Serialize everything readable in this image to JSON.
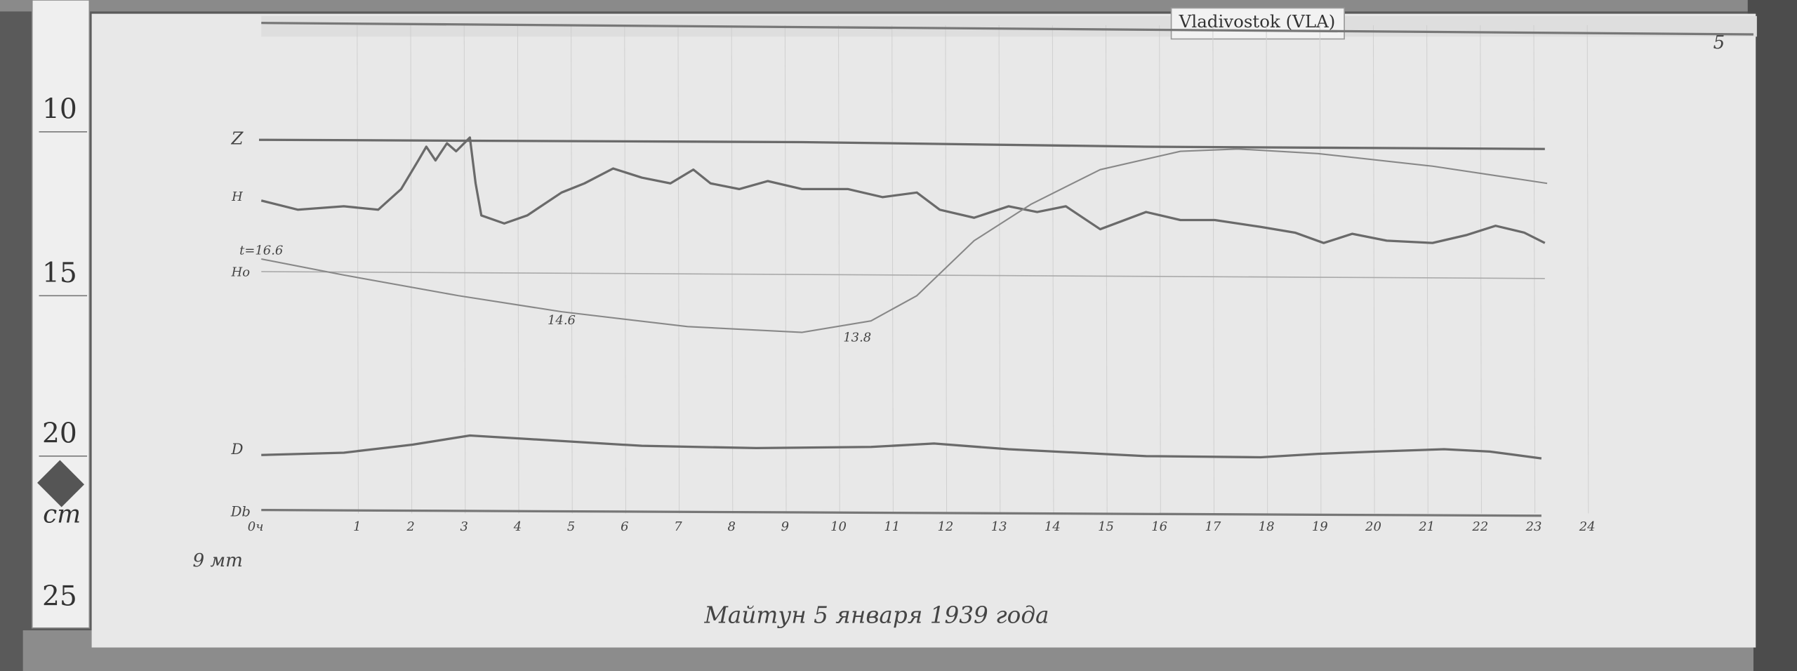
{
  "header": {
    "station": "Vladivostok (VLA)",
    "sheet": "5"
  },
  "ruler": {
    "marks": [
      "10",
      "15",
      "20",
      "25"
    ],
    "unit": "cm"
  },
  "chart": {
    "trace_labels": {
      "z": "Z",
      "h": "H",
      "t": "t=16.6",
      "h0": "Hо",
      "d": "D",
      "db": "Db"
    },
    "annotations": [
      "14.6",
      "13.8"
    ],
    "hours": [
      "0ч",
      "1",
      "2",
      "3",
      "4",
      "5",
      "6",
      "7",
      "8",
      "9",
      "10",
      "11",
      "12",
      "13",
      "14",
      "15",
      "16",
      "17",
      "18",
      "19",
      "20",
      "21",
      "22",
      "23",
      "24"
    ],
    "note": "9 мт"
  },
  "footer": {
    "caption": "Майтун 5 января 1939 года"
  }
}
